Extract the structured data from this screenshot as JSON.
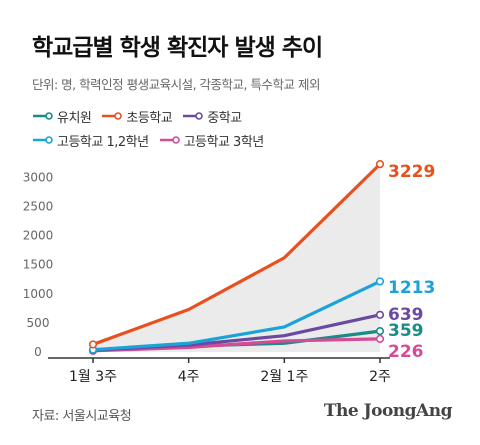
{
  "title": "학교급별 학생 확진자 발생 추이",
  "subtitle": "단위: 명, 학력인정 평생교육시설, 각종학교, 특수학교 제외",
  "source": "자료: 서울시교육청",
  "logo": "The JoongAng",
  "chart_data": {
    "type": "line",
    "categories": [
      "1월 3주",
      "4주",
      "2월 1주",
      "2주"
    ],
    "ylim": [
      0,
      3300
    ],
    "yticks": [
      0,
      500,
      1000,
      1500,
      2000,
      2500,
      3000
    ],
    "grid": false,
    "legend_placement": "top-left",
    "series": [
      {
        "name": "유치원",
        "color": "#1a8c87",
        "values": [
          30,
          100,
          150,
          359
        ],
        "end_label": "359"
      },
      {
        "name": "초등학교",
        "color": "#e8501e",
        "values": [
          130,
          730,
          1620,
          3229
        ],
        "end_label": "3229"
      },
      {
        "name": "중학교",
        "color": "#6a4aa0",
        "values": [
          30,
          120,
          280,
          639
        ],
        "end_label": "639"
      },
      {
        "name": "고등학교 1,2학년",
        "color": "#1aa3d6",
        "values": [
          40,
          150,
          430,
          1213
        ],
        "end_label": "1213"
      },
      {
        "name": "고등학교 3학년",
        "color": "#d64a96",
        "values": [
          20,
          80,
          190,
          226
        ],
        "end_label": "226"
      }
    ]
  }
}
